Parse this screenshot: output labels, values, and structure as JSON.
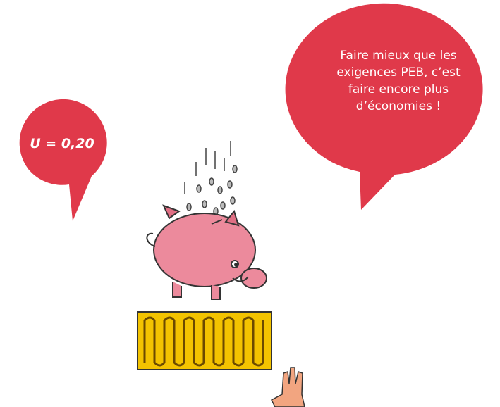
{
  "bubbles": [
    {
      "text": "U = 0,20"
    },
    {
      "lines": [
        "Faire mieux que les",
        "exigences PEB, c’est",
        "faire encore plus",
        "d’économies !"
      ]
    }
  ]
}
